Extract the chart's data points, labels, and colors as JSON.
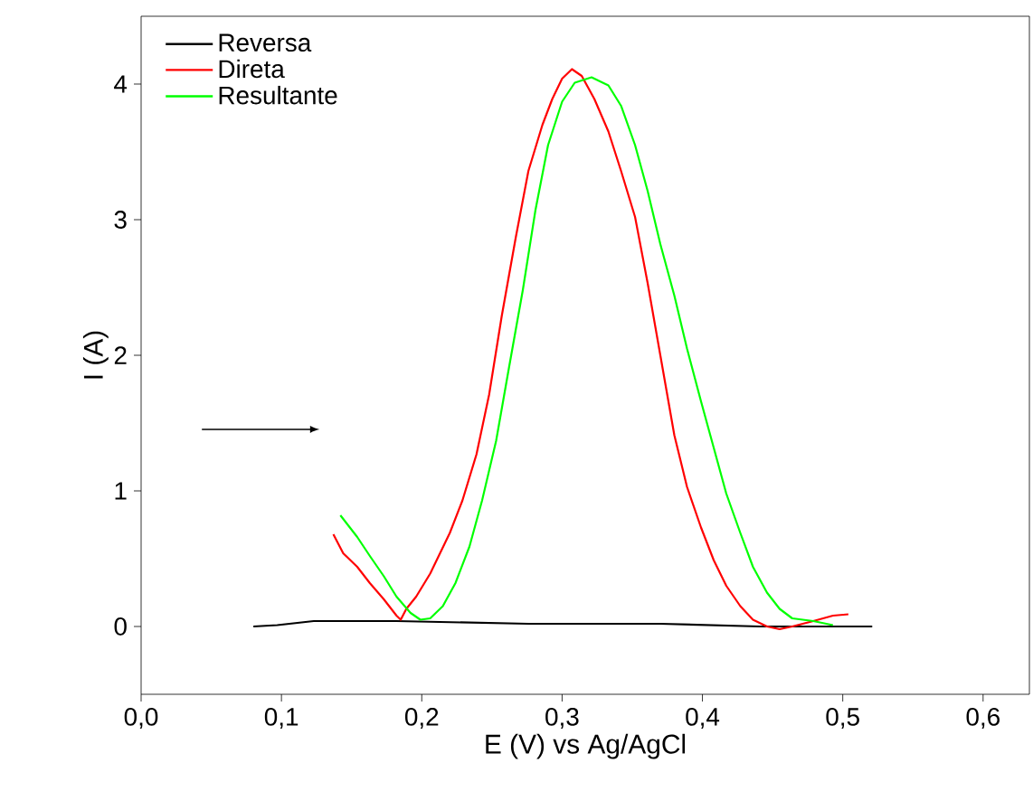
{
  "chart_data": {
    "type": "line",
    "xlabel": "E (V) vs Ag/AgCl",
    "ylabel": "I (A)",
    "xlim": [
      0,
      0.633
    ],
    "ylim": [
      -0.5,
      4.5
    ],
    "xticks": [
      {
        "value": 0,
        "label": "0,0"
      },
      {
        "value": 0.1,
        "label": "0,1"
      },
      {
        "value": 0.2,
        "label": "0,2"
      },
      {
        "value": 0.3,
        "label": "0,3"
      },
      {
        "value": 0.4,
        "label": "0,4"
      },
      {
        "value": 0.5,
        "label": "0,5"
      },
      {
        "value": 0.6,
        "label": "0,6"
      }
    ],
    "yticks": [
      0,
      1,
      2,
      3,
      4
    ],
    "legend": "top left",
    "series": [
      {
        "name": "Reversa",
        "color": "#000000",
        "x": [
          0.08,
          0.097,
          0.123,
          0.182,
          0.276,
          0.37,
          0.441,
          0.521
        ],
        "values": [
          0.0,
          0.01,
          0.04,
          0.04,
          0.02,
          0.02,
          0.0,
          0.0
        ]
      },
      {
        "name": "Direta",
        "color": "#ff0000",
        "x": [
          0.137,
          0.144,
          0.154,
          0.163,
          0.173,
          0.182,
          0.185,
          0.189,
          0.196,
          0.206,
          0.22,
          0.229,
          0.239,
          0.248,
          0.257,
          0.267,
          0.276,
          0.286,
          0.293,
          0.3,
          0.307,
          0.314,
          0.323,
          0.333,
          0.342,
          0.352,
          0.361,
          0.37,
          0.38,
          0.389,
          0.399,
          0.408,
          0.417,
          0.427,
          0.436,
          0.446,
          0.455,
          0.464,
          0.479,
          0.493,
          0.504
        ],
        "values": [
          0.68,
          0.54,
          0.44,
          0.32,
          0.2,
          0.08,
          0.05,
          0.13,
          0.22,
          0.39,
          0.69,
          0.93,
          1.27,
          1.71,
          2.29,
          2.87,
          3.36,
          3.7,
          3.89,
          4.04,
          4.11,
          4.06,
          3.89,
          3.65,
          3.36,
          3.02,
          2.53,
          2.0,
          1.41,
          1.03,
          0.73,
          0.49,
          0.3,
          0.15,
          0.05,
          0.0,
          -0.02,
          0.0,
          0.04,
          0.08,
          0.09
        ]
      },
      {
        "name": "Resultante",
        "color": "#00ff00",
        "x": [
          0.142,
          0.154,
          0.163,
          0.173,
          0.182,
          0.192,
          0.199,
          0.206,
          0.215,
          0.224,
          0.234,
          0.243,
          0.253,
          0.262,
          0.272,
          0.281,
          0.29,
          0.3,
          0.309,
          0.321,
          0.333,
          0.342,
          0.352,
          0.361,
          0.37,
          0.38,
          0.389,
          0.399,
          0.408,
          0.417,
          0.427,
          0.436,
          0.446,
          0.455,
          0.464,
          0.479,
          0.493
        ],
        "values": [
          0.82,
          0.66,
          0.52,
          0.37,
          0.22,
          0.1,
          0.05,
          0.06,
          0.15,
          0.32,
          0.59,
          0.93,
          1.37,
          1.9,
          2.48,
          3.07,
          3.55,
          3.87,
          4.01,
          4.05,
          3.99,
          3.84,
          3.55,
          3.21,
          2.82,
          2.44,
          2.05,
          1.66,
          1.32,
          0.98,
          0.69,
          0.44,
          0.25,
          0.13,
          0.06,
          0.04,
          0.01
        ]
      }
    ]
  }
}
